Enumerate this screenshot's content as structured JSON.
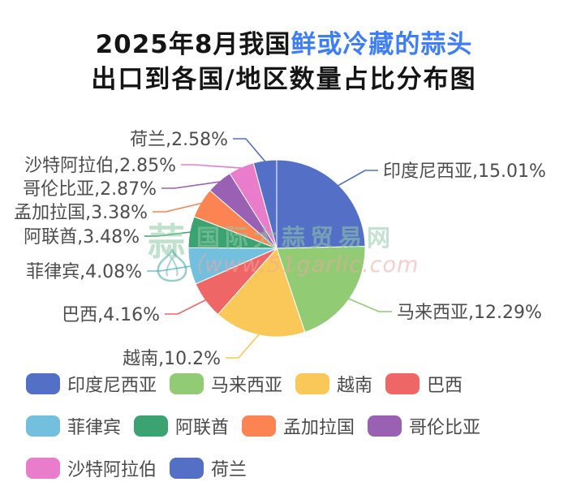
{
  "title": {
    "line1_black": "2025年8月我国",
    "line1_blue": "鲜或冷藏的蒜头",
    "line2": "出口到各国/地区数量占比分布图",
    "accent_color": "#3d7ef7",
    "text_color": "#151515"
  },
  "watermark": {
    "logo_char": "蒜",
    "site_name": "国际大蒜贸易网",
    "site_url": "（www.51garlic.com"
  },
  "chart_data": {
    "type": "pie",
    "title": "2025年8月我国鲜或冷藏的蒜头出口到各国/地区数量占比分布图",
    "unit": "%",
    "label_color": "#4d4d4d",
    "legend_position": "bottom",
    "slices": [
      {
        "name": "印度尼西亚",
        "value": 15.01,
        "label": "印度尼西亚,15.01%",
        "color": "#5470c6"
      },
      {
        "name": "马来西亚",
        "value": 12.29,
        "label": "马来西亚,12.29%",
        "color": "#91cc75"
      },
      {
        "name": "越南",
        "value": 10.2,
        "label": "越南,10.2%",
        "color": "#fac858"
      },
      {
        "name": "巴西",
        "value": 4.16,
        "label": "巴西,4.16%",
        "color": "#ee6666"
      },
      {
        "name": "菲律宾",
        "value": 4.08,
        "label": "菲律宾,4.08%",
        "color": "#73c0de"
      },
      {
        "name": "阿联酋",
        "value": 3.48,
        "label": "阿联酋,3.48%",
        "color": "#3ba272"
      },
      {
        "name": "孟加拉国",
        "value": 3.38,
        "label": "孟加拉国,3.38%",
        "color": "#fc8452"
      },
      {
        "name": "哥伦比亚",
        "value": 2.87,
        "label": "哥伦比亚,2.87%",
        "color": "#9a60b4"
      },
      {
        "name": "沙特阿拉伯",
        "value": 2.85,
        "label": "沙特阿拉伯,2.85%",
        "color": "#ea7ccc"
      },
      {
        "name": "荷兰",
        "value": 2.58,
        "label": "荷兰,2.58%",
        "color": "#5470c6"
      }
    ]
  }
}
